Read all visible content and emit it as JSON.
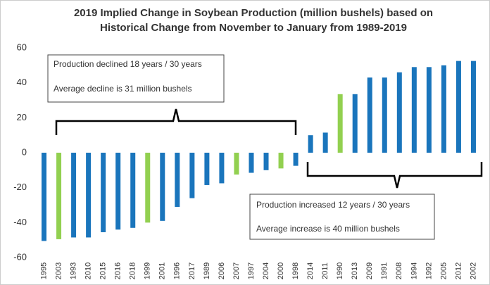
{
  "chart_data": {
    "type": "bar",
    "title": [
      "2019 Implied Change in Soybean Production (million bushels) based on",
      "Historical Change from November to January from 1989-2019"
    ],
    "categories": [
      "1995",
      "2003",
      "1993",
      "2010",
      "2015",
      "2016",
      "2018",
      "1999",
      "2001",
      "1996",
      "2017",
      "1989",
      "2006",
      "2007",
      "1997",
      "2004",
      "2000",
      "1998",
      "2014",
      "2011",
      "1990",
      "2013",
      "2009",
      "1991",
      "2008",
      "1994",
      "1992",
      "2005",
      "2012",
      "2002"
    ],
    "values": [
      -50.5,
      -49.5,
      -48.5,
      -48.5,
      -45.5,
      -44,
      -43,
      -40,
      -39,
      -31,
      -26,
      -18.5,
      -17.5,
      -12.5,
      -11.5,
      -10,
      -9,
      -7.5,
      10,
      11.5,
      33.5,
      33.5,
      43,
      43,
      46,
      49,
      49,
      50,
      52.5,
      52.5
    ],
    "colors": [
      "#1a75bc",
      "#92d050",
      "#1a75bc",
      "#1a75bc",
      "#1a75bc",
      "#1a75bc",
      "#1a75bc",
      "#92d050",
      "#1a75bc",
      "#1a75bc",
      "#1a75bc",
      "#1a75bc",
      "#1a75bc",
      "#92d050",
      "#1a75bc",
      "#1a75bc",
      "#92d050",
      "#1a75bc",
      "#1a75bc",
      "#1a75bc",
      "#92d050",
      "#1a75bc",
      "#1a75bc",
      "#1a75bc",
      "#1a75bc",
      "#1a75bc",
      "#1a75bc",
      "#1a75bc",
      "#1a75bc",
      "#1a75bc"
    ],
    "ylim": [
      -60,
      60
    ],
    "yticks": [
      -60,
      -40,
      -20,
      0,
      20,
      40,
      60
    ],
    "annotations": [
      {
        "lines": [
          "Production declined 18 years / 30 years",
          "Average decline is 31 million bushels"
        ]
      },
      {
        "lines": [
          "Production increased 12 years / 30 years",
          "Average increase is 40 million bushels"
        ]
      }
    ]
  }
}
